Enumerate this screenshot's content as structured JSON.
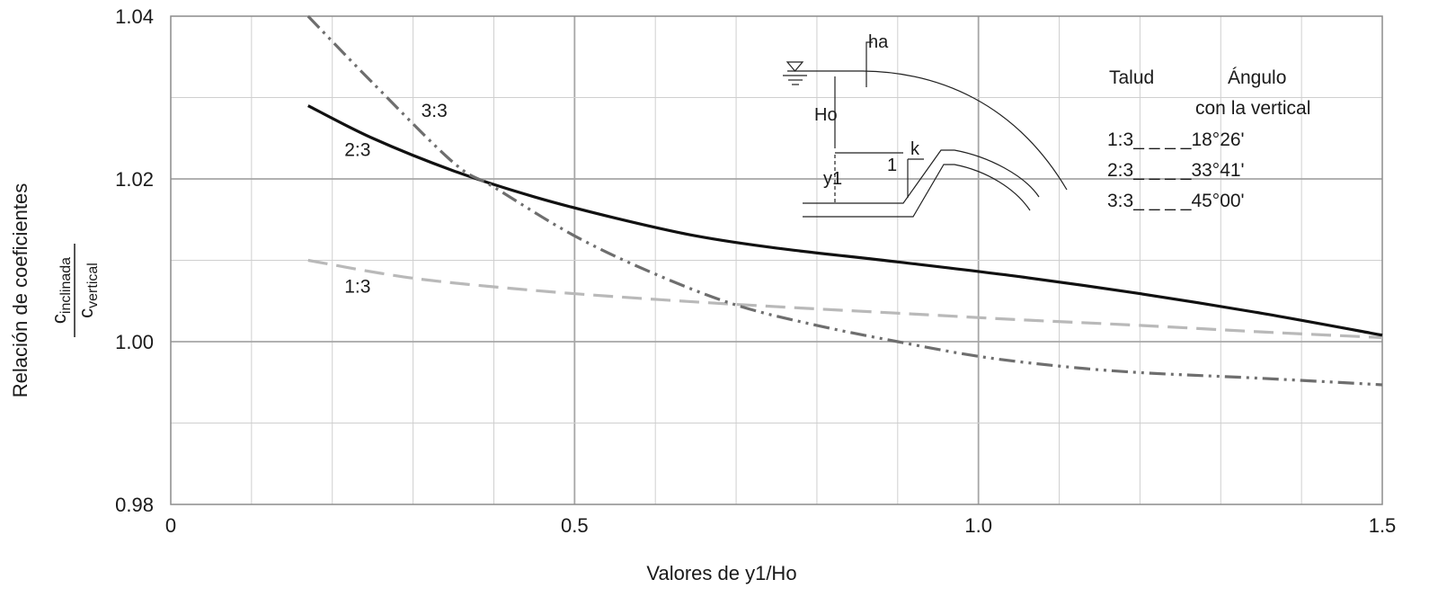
{
  "chart_data": {
    "type": "line",
    "xlabel": "Valores de y1/Ho",
    "ylabel_prefix": "Relación de coeficientes",
    "ylabel_fraction": {
      "numerator": "c",
      "numerator_sub": "inclinada",
      "denominator": "c",
      "denominator_sub": "vertical"
    },
    "xlim": [
      0,
      1.5
    ],
    "ylim": [
      0.98,
      1.04
    ],
    "x_ticks": [
      {
        "value": 0,
        "label": "0"
      },
      {
        "value": 0.5,
        "label": "0.5"
      },
      {
        "value": 1.0,
        "label": "1.0"
      },
      {
        "value": 1.5,
        "label": "1.5"
      }
    ],
    "y_ticks": [
      {
        "value": 0.98,
        "label": "0.98"
      },
      {
        "value": 1.0,
        "label": "1.00"
      },
      {
        "value": 1.02,
        "label": "1.02"
      },
      {
        "value": 1.04,
        "label": "1.04"
      }
    ],
    "grid": true,
    "series": [
      {
        "name": "1:3",
        "color": "#b9b9b9",
        "style": "dashed",
        "x": [
          0.17,
          0.3,
          0.45,
          0.6,
          0.75,
          0.9,
          1.05,
          1.2,
          1.35,
          1.5
        ],
        "y": [
          1.01,
          1.0078,
          1.0063,
          1.0052,
          1.0043,
          1.0035,
          1.0027,
          1.002,
          1.0012,
          1.0005
        ]
      },
      {
        "name": "2:3",
        "color": "#111111",
        "style": "solid",
        "x": [
          0.17,
          0.25,
          0.35,
          0.45,
          0.55,
          0.65,
          0.75,
          0.9,
          1.05,
          1.2,
          1.35,
          1.5
        ],
        "y": [
          1.029,
          1.025,
          1.021,
          1.0178,
          1.0152,
          1.013,
          1.0115,
          1.0098,
          1.008,
          1.0059,
          1.0035,
          1.0008
        ]
      },
      {
        "name": "3:3",
        "color": "#6e6e6e",
        "style": "dashdotdot",
        "x": [
          0.17,
          0.25,
          0.35,
          0.4,
          0.5,
          0.6,
          0.7,
          0.8,
          0.9,
          1.0,
          1.1,
          1.2,
          1.35,
          1.5
        ],
        "y": [
          1.04,
          1.0318,
          1.022,
          1.019,
          1.013,
          1.0083,
          1.0045,
          1.002,
          1.0,
          0.9982,
          0.997,
          0.9962,
          0.9955,
          0.9947
        ]
      }
    ],
    "curve_labels": [
      {
        "text": "3:3",
        "x": 0.31,
        "y": 1.0276
      },
      {
        "text": "2:3",
        "x": 0.215,
        "y": 1.0228
      },
      {
        "text": "1:3",
        "x": 0.215,
        "y": 1.006
      }
    ],
    "table": {
      "header_left": "Talud",
      "header_right_line1": "Ángulo",
      "header_right_line2": "con la vertical",
      "rows": [
        {
          "slope": "1:3",
          "dashes": "_ _ _ _",
          "angle": "18°26'"
        },
        {
          "slope": "2:3",
          "dashes": "_ _ _ _",
          "angle": "33°41'"
        },
        {
          "slope": "3:3",
          "dashes": "_ _ _ _",
          "angle": "45°00'"
        }
      ]
    },
    "diagram_labels": {
      "ha": "ha",
      "ho": "Ho",
      "y1": "y1",
      "one": "1",
      "k": "k"
    }
  }
}
